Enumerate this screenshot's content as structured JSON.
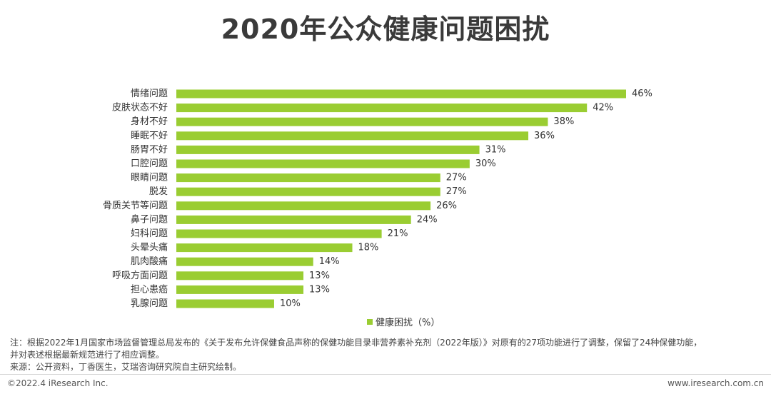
{
  "title": "2020年公众健康问题困扰",
  "colors": {
    "bar": "#9ACD32",
    "text": "#333333"
  },
  "chart_data": {
    "type": "bar",
    "orientation": "horizontal",
    "categories": [
      "情绪问题",
      "皮肤状态不好",
      "身材不好",
      "睡眠不好",
      "肠胃不好",
      "口腔问题",
      "眼睛问题",
      "脱发",
      "骨质关节等问题",
      "鼻子问题",
      "妇科问题",
      "头晕头痛",
      "肌肉酸痛",
      "呼吸方面问题",
      "担心患癌",
      "乳腺问题"
    ],
    "series": [
      {
        "name": "健康困扰（%）",
        "values": [
          46,
          42,
          38,
          36,
          31,
          30,
          27,
          27,
          26,
          24,
          21,
          18,
          14,
          13,
          13,
          10
        ]
      }
    ],
    "value_labels": [
      "46%",
      "42%",
      "38%",
      "36%",
      "31%",
      "30%",
      "27%",
      "27%",
      "26%",
      "24%",
      "21%",
      "18%",
      "14%",
      "13%",
      "13%",
      "10%"
    ],
    "xlim": [
      0,
      46
    ],
    "grid": false,
    "legend_position": "bottom"
  },
  "notes": {
    "line1": "注：根据2022年1月国家市场监督管理总局发布的《关于发布允许保健食品声称的保健功能目录非营养素补充剂（2022年版）》对原有的27项功能进行了调整，保留了24种保健功能，",
    "line2": "并对表述根据最新规范进行了相应调整。",
    "line3": "来源：公开资料，丁香医生，艾瑞咨询研究院自主研究绘制。"
  },
  "footer": {
    "copyright": "©2022.4 iResearch Inc.",
    "website": "www.iresearch.com.cn"
  }
}
